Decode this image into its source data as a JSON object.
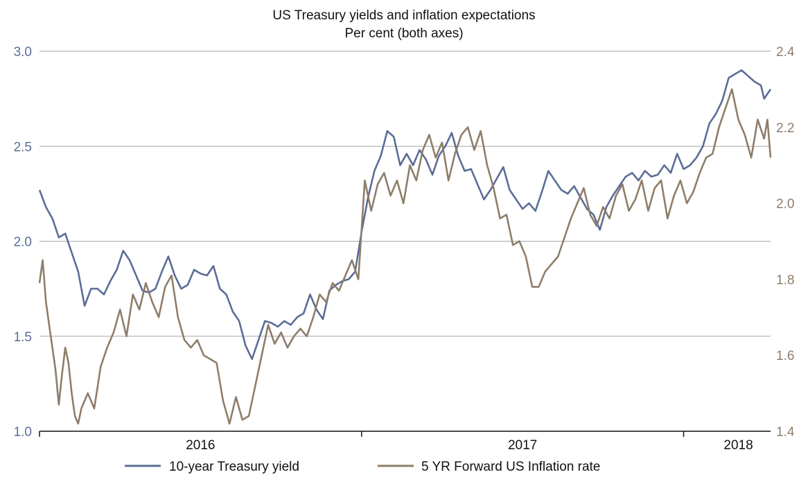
{
  "chart_data": {
    "type": "line",
    "title": "US Treasury yields and inflation expectations",
    "subtitle": "Per cent (both axes)",
    "y_left": {
      "ylim": [
        1.0,
        3.0
      ],
      "ticks": [
        "1.0",
        "1.5",
        "2.0",
        "2.5",
        "3.0"
      ],
      "color": "#5b6c96"
    },
    "y_right": {
      "ylim": [
        1.4,
        2.4
      ],
      "ticks": [
        "1.4",
        "1.6",
        "1.8",
        "2.0",
        "2.2",
        "2.4"
      ],
      "color": "#8e7d6a"
    },
    "x_range": [
      2015.85,
      2018.12
    ],
    "x_axis_labels": [
      {
        "label": "2016",
        "x": 2016.35
      },
      {
        "label": "2017",
        "x": 2017.35
      },
      {
        "label": "2018",
        "x": 2018.02
      }
    ],
    "x_boundaries": [
      2016.85,
      2017.85
    ],
    "grid": true,
    "legend_position": "bottom",
    "series": [
      {
        "name": "10-year Treasury yield",
        "axis": "left",
        "color": "#5b6c96",
        "points": [
          [
            2015.85,
            2.27
          ],
          [
            2015.87,
            2.18
          ],
          [
            2015.89,
            2.12
          ],
          [
            2015.91,
            2.02
          ],
          [
            2015.93,
            2.04
          ],
          [
            2015.95,
            1.94
          ],
          [
            2015.97,
            1.84
          ],
          [
            2015.99,
            1.66
          ],
          [
            2016.01,
            1.75
          ],
          [
            2016.03,
            1.75
          ],
          [
            2016.05,
            1.72
          ],
          [
            2016.07,
            1.79
          ],
          [
            2016.09,
            1.85
          ],
          [
            2016.11,
            1.95
          ],
          [
            2016.13,
            1.9
          ],
          [
            2016.15,
            1.82
          ],
          [
            2016.17,
            1.74
          ],
          [
            2016.19,
            1.73
          ],
          [
            2016.21,
            1.75
          ],
          [
            2016.23,
            1.84
          ],
          [
            2016.25,
            1.92
          ],
          [
            2016.27,
            1.82
          ],
          [
            2016.29,
            1.75
          ],
          [
            2016.31,
            1.77
          ],
          [
            2016.33,
            1.85
          ],
          [
            2016.35,
            1.83
          ],
          [
            2016.37,
            1.82
          ],
          [
            2016.39,
            1.87
          ],
          [
            2016.41,
            1.75
          ],
          [
            2016.43,
            1.72
          ],
          [
            2016.45,
            1.63
          ],
          [
            2016.47,
            1.58
          ],
          [
            2016.49,
            1.45
          ],
          [
            2016.51,
            1.38
          ],
          [
            2016.53,
            1.48
          ],
          [
            2016.55,
            1.58
          ],
          [
            2016.57,
            1.57
          ],
          [
            2016.59,
            1.55
          ],
          [
            2016.61,
            1.58
          ],
          [
            2016.63,
            1.56
          ],
          [
            2016.65,
            1.6
          ],
          [
            2016.67,
            1.62
          ],
          [
            2016.69,
            1.72
          ],
          [
            2016.71,
            1.64
          ],
          [
            2016.73,
            1.59
          ],
          [
            2016.75,
            1.74
          ],
          [
            2016.77,
            1.77
          ],
          [
            2016.79,
            1.79
          ],
          [
            2016.81,
            1.8
          ],
          [
            2016.83,
            1.84
          ],
          [
            2016.85,
            2.05
          ],
          [
            2016.87,
            2.23
          ],
          [
            2016.89,
            2.37
          ],
          [
            2016.91,
            2.45
          ],
          [
            2016.93,
            2.58
          ],
          [
            2016.95,
            2.55
          ],
          [
            2016.97,
            2.4
          ],
          [
            2016.99,
            2.46
          ],
          [
            2017.01,
            2.4
          ],
          [
            2017.03,
            2.48
          ],
          [
            2017.05,
            2.43
          ],
          [
            2017.07,
            2.35
          ],
          [
            2017.09,
            2.45
          ],
          [
            2017.11,
            2.5
          ],
          [
            2017.13,
            2.57
          ],
          [
            2017.15,
            2.45
          ],
          [
            2017.17,
            2.37
          ],
          [
            2017.19,
            2.38
          ],
          [
            2017.21,
            2.3
          ],
          [
            2017.23,
            2.22
          ],
          [
            2017.25,
            2.27
          ],
          [
            2017.27,
            2.33
          ],
          [
            2017.29,
            2.39
          ],
          [
            2017.31,
            2.27
          ],
          [
            2017.33,
            2.22
          ],
          [
            2017.35,
            2.17
          ],
          [
            2017.37,
            2.2
          ],
          [
            2017.39,
            2.16
          ],
          [
            2017.41,
            2.26
          ],
          [
            2017.43,
            2.37
          ],
          [
            2017.45,
            2.32
          ],
          [
            2017.47,
            2.27
          ],
          [
            2017.49,
            2.25
          ],
          [
            2017.51,
            2.29
          ],
          [
            2017.53,
            2.23
          ],
          [
            2017.55,
            2.17
          ],
          [
            2017.57,
            2.14
          ],
          [
            2017.59,
            2.06
          ],
          [
            2017.61,
            2.18
          ],
          [
            2017.63,
            2.24
          ],
          [
            2017.65,
            2.29
          ],
          [
            2017.67,
            2.34
          ],
          [
            2017.69,
            2.36
          ],
          [
            2017.71,
            2.32
          ],
          [
            2017.73,
            2.37
          ],
          [
            2017.75,
            2.34
          ],
          [
            2017.77,
            2.35
          ],
          [
            2017.79,
            2.4
          ],
          [
            2017.81,
            2.36
          ],
          [
            2017.83,
            2.46
          ],
          [
            2017.85,
            2.38
          ],
          [
            2017.87,
            2.4
          ],
          [
            2017.89,
            2.44
          ],
          [
            2017.91,
            2.5
          ],
          [
            2017.93,
            2.62
          ],
          [
            2017.95,
            2.67
          ],
          [
            2017.97,
            2.74
          ],
          [
            2017.99,
            2.86
          ],
          [
            2018.01,
            2.88
          ],
          [
            2018.03,
            2.9
          ],
          [
            2018.05,
            2.87
          ],
          [
            2018.07,
            2.84
          ],
          [
            2018.09,
            2.82
          ],
          [
            2018.1,
            2.75
          ],
          [
            2018.12,
            2.8
          ]
        ]
      },
      {
        "name": "5 YR Forward US Inflation rate",
        "axis": "right",
        "color": "#8e7d6a",
        "points": [
          [
            2015.85,
            1.79
          ],
          [
            2015.86,
            1.85
          ],
          [
            2015.87,
            1.74
          ],
          [
            2015.88,
            1.68
          ],
          [
            2015.89,
            1.62
          ],
          [
            2015.9,
            1.56
          ],
          [
            2015.91,
            1.47
          ],
          [
            2015.92,
            1.55
          ],
          [
            2015.93,
            1.62
          ],
          [
            2015.94,
            1.58
          ],
          [
            2015.95,
            1.5
          ],
          [
            2015.96,
            1.44
          ],
          [
            2015.97,
            1.42
          ],
          [
            2015.98,
            1.46
          ],
          [
            2016.0,
            1.5
          ],
          [
            2016.02,
            1.46
          ],
          [
            2016.04,
            1.57
          ],
          [
            2016.06,
            1.62
          ],
          [
            2016.08,
            1.66
          ],
          [
            2016.1,
            1.72
          ],
          [
            2016.12,
            1.65
          ],
          [
            2016.14,
            1.76
          ],
          [
            2016.16,
            1.72
          ],
          [
            2016.18,
            1.79
          ],
          [
            2016.2,
            1.74
          ],
          [
            2016.22,
            1.7
          ],
          [
            2016.24,
            1.78
          ],
          [
            2016.26,
            1.81
          ],
          [
            2016.28,
            1.7
          ],
          [
            2016.3,
            1.64
          ],
          [
            2016.32,
            1.62
          ],
          [
            2016.34,
            1.64
          ],
          [
            2016.36,
            1.6
          ],
          [
            2016.38,
            1.59
          ],
          [
            2016.4,
            1.58
          ],
          [
            2016.42,
            1.48
          ],
          [
            2016.44,
            1.42
          ],
          [
            2016.46,
            1.49
          ],
          [
            2016.48,
            1.43
          ],
          [
            2016.5,
            1.44
          ],
          [
            2016.52,
            1.52
          ],
          [
            2016.54,
            1.6
          ],
          [
            2016.56,
            1.68
          ],
          [
            2016.58,
            1.63
          ],
          [
            2016.6,
            1.66
          ],
          [
            2016.62,
            1.62
          ],
          [
            2016.64,
            1.65
          ],
          [
            2016.66,
            1.67
          ],
          [
            2016.68,
            1.65
          ],
          [
            2016.7,
            1.7
          ],
          [
            2016.72,
            1.76
          ],
          [
            2016.74,
            1.74
          ],
          [
            2016.76,
            1.79
          ],
          [
            2016.78,
            1.77
          ],
          [
            2016.8,
            1.81
          ],
          [
            2016.82,
            1.85
          ],
          [
            2016.84,
            1.8
          ],
          [
            2016.86,
            2.06
          ],
          [
            2016.88,
            1.98
          ],
          [
            2016.9,
            2.05
          ],
          [
            2016.92,
            2.08
          ],
          [
            2016.94,
            2.02
          ],
          [
            2016.96,
            2.06
          ],
          [
            2016.98,
            2.0
          ],
          [
            2017.0,
            2.1
          ],
          [
            2017.02,
            2.06
          ],
          [
            2017.04,
            2.14
          ],
          [
            2017.06,
            2.18
          ],
          [
            2017.08,
            2.12
          ],
          [
            2017.1,
            2.16
          ],
          [
            2017.12,
            2.06
          ],
          [
            2017.14,
            2.13
          ],
          [
            2017.16,
            2.18
          ],
          [
            2017.18,
            2.2
          ],
          [
            2017.2,
            2.14
          ],
          [
            2017.22,
            2.19
          ],
          [
            2017.24,
            2.1
          ],
          [
            2017.26,
            2.04
          ],
          [
            2017.28,
            1.96
          ],
          [
            2017.3,
            1.97
          ],
          [
            2017.32,
            1.89
          ],
          [
            2017.34,
            1.9
          ],
          [
            2017.36,
            1.86
          ],
          [
            2017.38,
            1.78
          ],
          [
            2017.4,
            1.78
          ],
          [
            2017.42,
            1.82
          ],
          [
            2017.44,
            1.84
          ],
          [
            2017.46,
            1.86
          ],
          [
            2017.48,
            1.91
          ],
          [
            2017.5,
            1.96
          ],
          [
            2017.52,
            2.0
          ],
          [
            2017.54,
            2.04
          ],
          [
            2017.56,
            1.97
          ],
          [
            2017.58,
            1.94
          ],
          [
            2017.6,
            1.99
          ],
          [
            2017.62,
            1.96
          ],
          [
            2017.64,
            2.02
          ],
          [
            2017.66,
            2.05
          ],
          [
            2017.68,
            1.98
          ],
          [
            2017.7,
            2.01
          ],
          [
            2017.72,
            2.06
          ],
          [
            2017.74,
            1.98
          ],
          [
            2017.76,
            2.04
          ],
          [
            2017.78,
            2.06
          ],
          [
            2017.8,
            1.96
          ],
          [
            2017.82,
            2.02
          ],
          [
            2017.84,
            2.06
          ],
          [
            2017.86,
            2.0
          ],
          [
            2017.88,
            2.03
          ],
          [
            2017.9,
            2.08
          ],
          [
            2017.92,
            2.12
          ],
          [
            2017.94,
            2.13
          ],
          [
            2017.96,
            2.2
          ],
          [
            2017.98,
            2.25
          ],
          [
            2018.0,
            2.3
          ],
          [
            2018.02,
            2.22
          ],
          [
            2018.04,
            2.18
          ],
          [
            2018.06,
            2.12
          ],
          [
            2018.08,
            2.22
          ],
          [
            2018.1,
            2.17
          ],
          [
            2018.11,
            2.22
          ],
          [
            2018.12,
            2.12
          ]
        ]
      }
    ]
  }
}
